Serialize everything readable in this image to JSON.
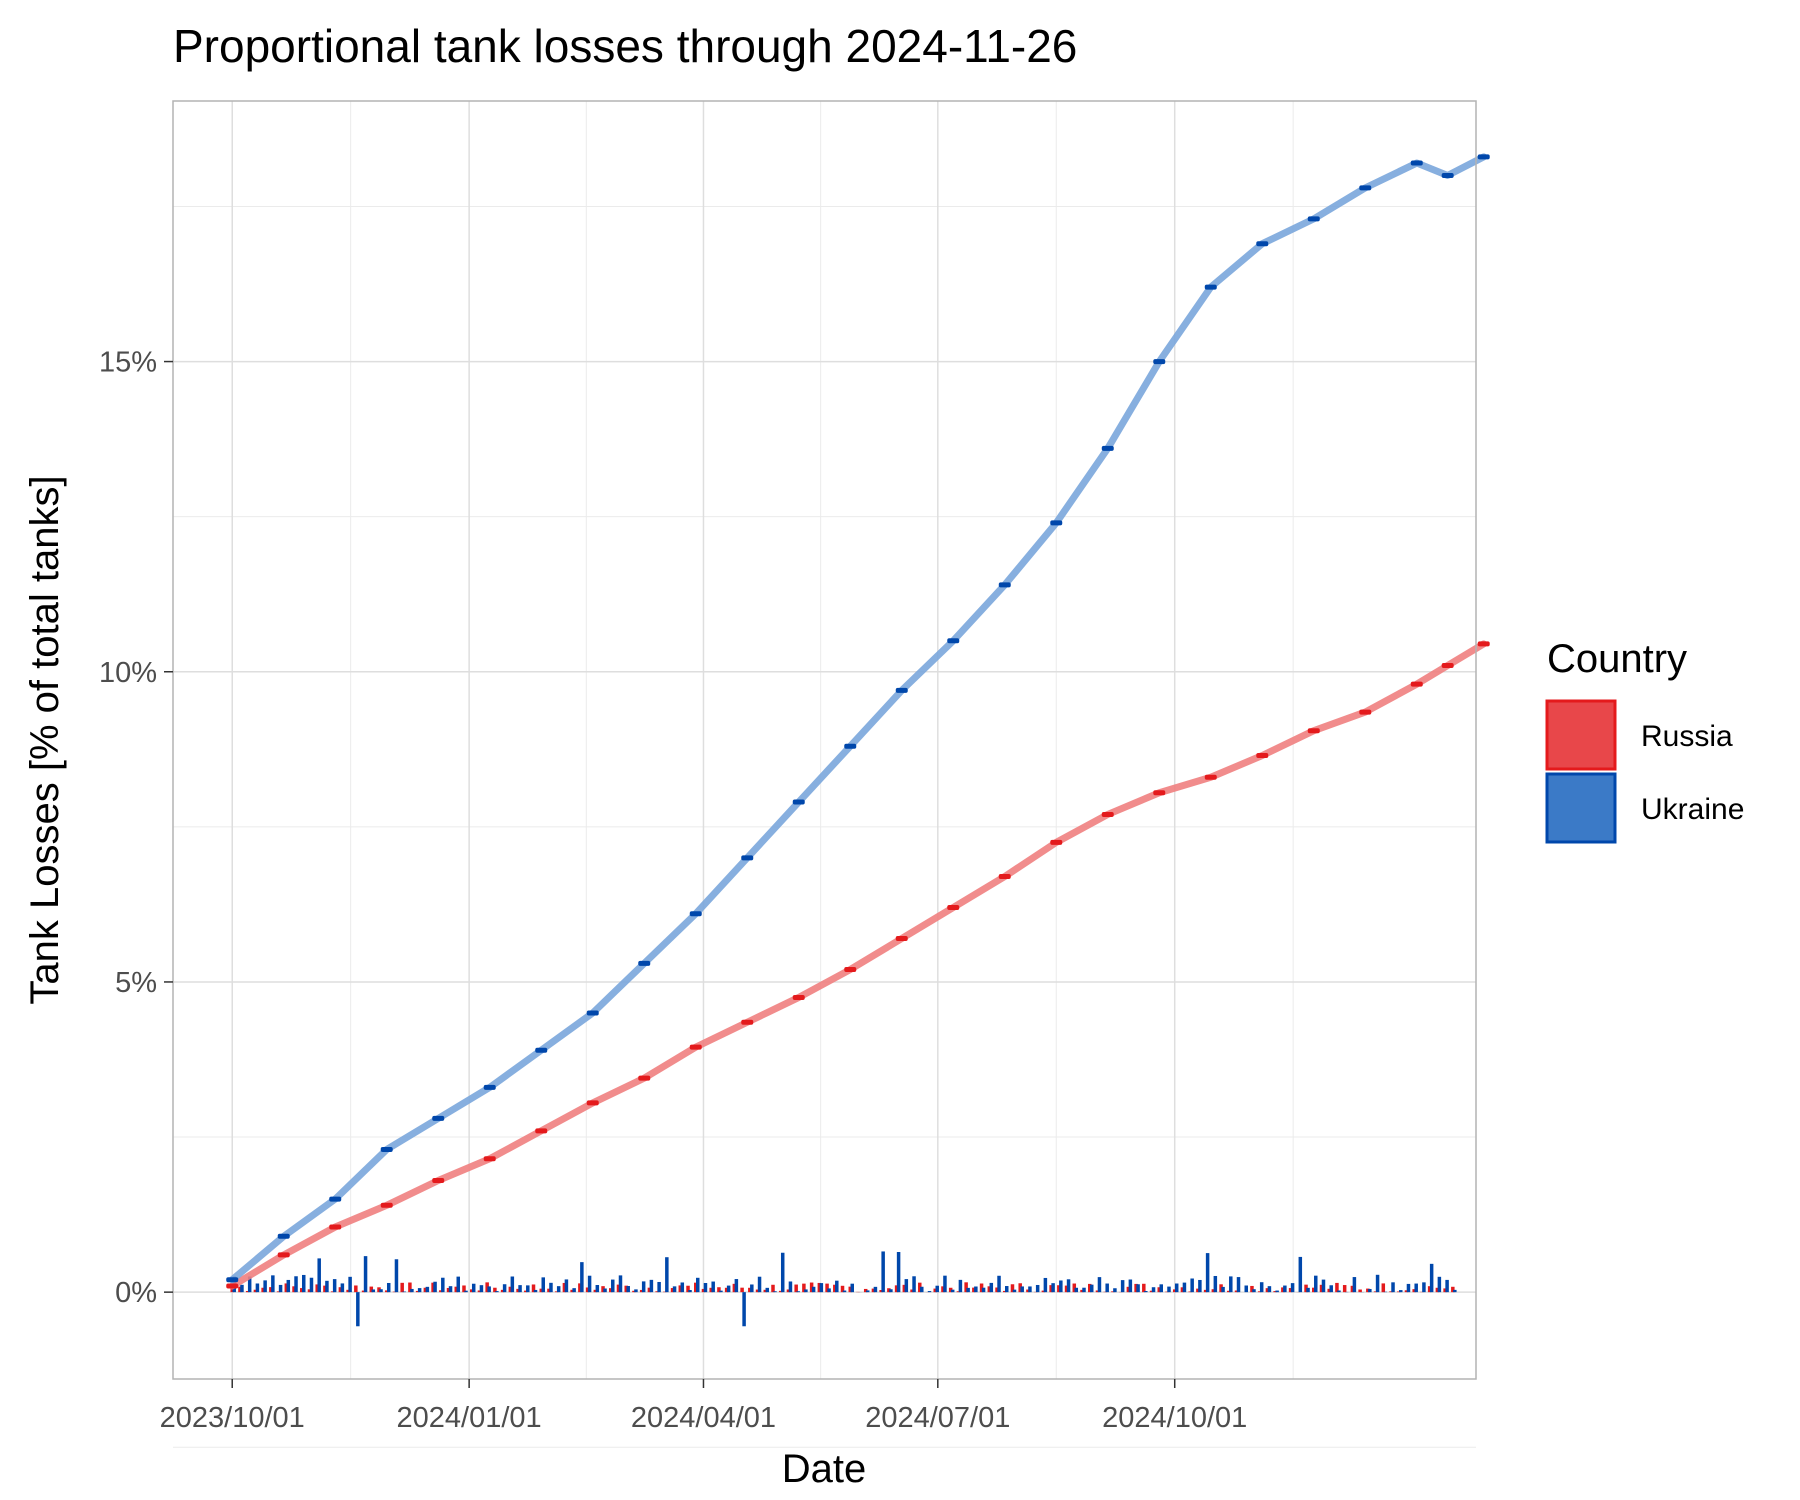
{
  "chart_data": {
    "type": "line",
    "title": "Proportional tank losses through 2024-11-26",
    "xlabel": "Date",
    "ylabel": "Tank Losses [% of total tanks]",
    "x_ticks": [
      "2023/10/01",
      "2024/01/01",
      "2024/04/01",
      "2024/07/01",
      "2024/10/01"
    ],
    "y_ticks": [
      "0%",
      "5%",
      "10%",
      "15%"
    ],
    "y_tick_values": [
      0,
      5,
      10,
      15
    ],
    "xlim_days": [
      -23,
      483
    ],
    "ylim": [
      -1.4,
      19.2
    ],
    "grid": true,
    "legend": {
      "title": "Country",
      "position": "right"
    },
    "series": [
      {
        "name": "Russia",
        "color": "#e41a1c",
        "smooth_color": "#f08080",
        "x_days": [
          0,
          20,
          40,
          60,
          80,
          100,
          120,
          140,
          160,
          180,
          200,
          220,
          240,
          260,
          280,
          300,
          320,
          340,
          360,
          380,
          400,
          420,
          440,
          460,
          472,
          486
        ],
        "values": [
          0.1,
          0.6,
          1.05,
          1.4,
          1.8,
          2.15,
          2.6,
          3.05,
          3.45,
          3.95,
          4.35,
          4.75,
          5.2,
          5.7,
          6.2,
          6.7,
          7.25,
          7.7,
          8.05,
          8.3,
          8.65,
          9.05,
          9.35,
          9.8,
          10.1,
          10.45
        ]
      },
      {
        "name": "Ukraine",
        "color": "#0047ab",
        "smooth_color": "#7aa6dc",
        "x_days": [
          0,
          20,
          40,
          60,
          80,
          100,
          120,
          140,
          160,
          180,
          200,
          220,
          240,
          260,
          280,
          300,
          320,
          340,
          360,
          380,
          400,
          420,
          440,
          460,
          472,
          486
        ],
        "values": [
          0.2,
          0.9,
          1.5,
          2.3,
          2.8,
          3.3,
          3.9,
          4.5,
          5.3,
          6.1,
          7.0,
          7.9,
          8.8,
          9.7,
          10.5,
          11.4,
          12.4,
          13.6,
          15.0,
          16.2,
          16.9,
          17.3,
          17.8,
          18.2,
          18.0,
          18.3
        ]
      }
    ]
  }
}
